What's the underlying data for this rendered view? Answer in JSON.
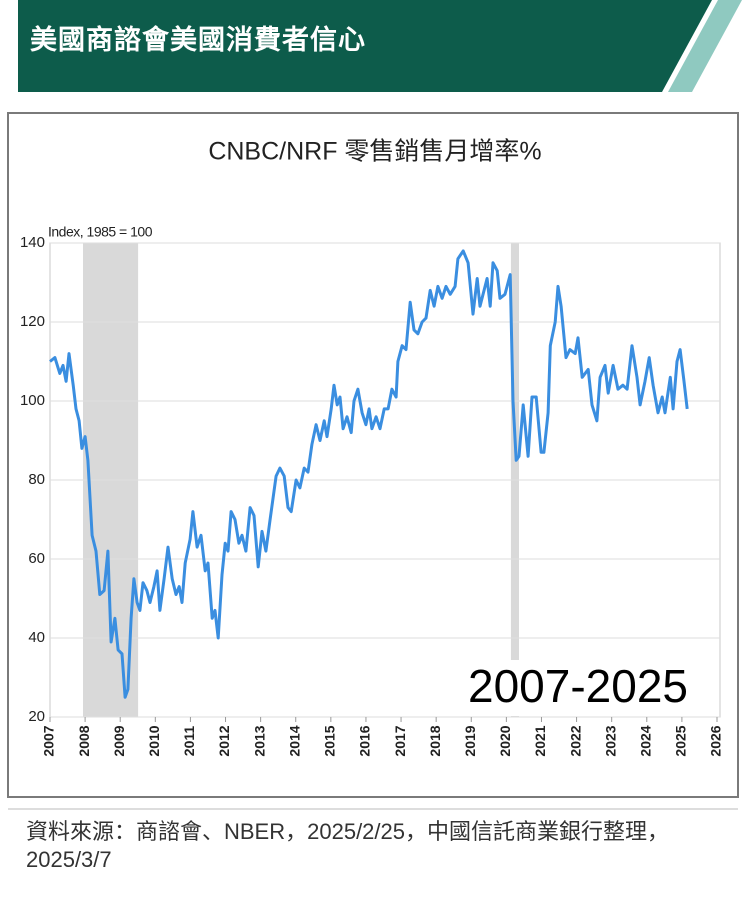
{
  "header": {
    "title": "美國商諮會美國消費者信心"
  },
  "chart_data": {
    "type": "line",
    "title": "CNBC/NRF 零售銷售月增率%",
    "y_label": "Index, 1985 = 100",
    "annotation": "2007-2025",
    "x": [
      2007.0,
      2007.14,
      2007.28,
      2007.37,
      2007.46,
      2007.54,
      2007.66,
      2007.74,
      2007.83,
      2007.91,
      2008.0,
      2008.08,
      2008.2,
      2008.31,
      2008.42,
      2008.54,
      2008.65,
      2008.74,
      2008.85,
      2008.94,
      2009.05,
      2009.14,
      2009.22,
      2009.31,
      2009.39,
      2009.48,
      2009.56,
      2009.65,
      2009.76,
      2009.85,
      2009.96,
      2010.05,
      2010.13,
      2010.25,
      2010.36,
      2010.48,
      2010.59,
      2010.68,
      2010.76,
      2010.85,
      2010.99,
      2011.07,
      2011.19,
      2011.3,
      2011.42,
      2011.5,
      2011.62,
      2011.7,
      2011.79,
      2011.9,
      2011.99,
      2012.07,
      2012.16,
      2012.27,
      2012.38,
      2012.47,
      2012.58,
      2012.7,
      2012.81,
      2012.93,
      2013.04,
      2013.15,
      2013.27,
      2013.44,
      2013.55,
      2013.67,
      2013.78,
      2013.87,
      2014.01,
      2014.12,
      2014.24,
      2014.35,
      2014.46,
      2014.58,
      2014.69,
      2014.81,
      2014.89,
      2015.01,
      2015.09,
      2015.18,
      2015.26,
      2015.35,
      2015.46,
      2015.58,
      2015.66,
      2015.77,
      2015.89,
      2016.0,
      2016.09,
      2016.17,
      2016.29,
      2016.4,
      2016.52,
      2016.63,
      2016.74,
      2016.86,
      2016.91,
      2017.03,
      2017.14,
      2017.26,
      2017.37,
      2017.48,
      2017.6,
      2017.71,
      2017.83,
      2017.94,
      2018.05,
      2018.17,
      2018.28,
      2018.4,
      2018.54,
      2018.62,
      2018.77,
      2018.91,
      2019.05,
      2019.17,
      2019.25,
      2019.45,
      2019.54,
      2019.62,
      2019.74,
      2019.82,
      2019.96,
      2020.11,
      2020.19,
      2020.28,
      2020.36,
      2020.48,
      2020.62,
      2020.73,
      2020.85,
      2020.99,
      2021.07,
      2021.19,
      2021.25,
      2021.39,
      2021.47,
      2021.56,
      2021.7,
      2021.81,
      2021.96,
      2022.04,
      2022.16,
      2022.33,
      2022.44,
      2022.58,
      2022.67,
      2022.81,
      2022.9,
      2023.04,
      2023.18,
      2023.32,
      2023.44,
      2023.58,
      2023.72,
      2023.81,
      2023.95,
      2024.07,
      2024.18,
      2024.32,
      2024.44,
      2024.52,
      2024.67,
      2024.75,
      2024.86,
      2024.95,
      2025.06,
      2025.15
    ],
    "series": [
      {
        "name": "Index",
        "color": "#3a8ee0",
        "values": [
          110,
          111,
          107,
          109,
          105,
          112,
          104,
          98,
          95,
          88,
          91,
          85,
          66,
          62,
          51,
          52,
          62,
          39,
          45,
          37,
          36,
          25,
          27,
          45,
          55,
          49,
          47,
          54,
          52,
          49,
          53,
          57,
          47,
          55,
          63,
          55,
          51,
          53,
          49,
          59,
          65,
          72,
          63,
          66,
          57,
          59,
          45,
          47,
          40,
          56,
          64,
          62,
          72,
          70,
          64,
          66,
          62,
          73,
          71,
          58,
          67,
          62,
          70,
          81,
          83,
          81,
          73,
          72,
          80,
          78,
          83,
          82,
          89,
          94,
          90,
          95,
          91,
          98,
          104,
          99,
          101,
          93,
          96,
          92,
          100,
          103,
          97,
          94,
          98,
          93,
          96,
          93,
          98,
          98,
          103,
          101,
          110,
          114,
          113,
          125,
          118,
          117,
          120,
          121,
          128,
          124,
          129,
          126,
          129,
          127,
          129,
          136,
          138,
          135,
          122,
          131,
          124,
          131,
          124,
          135,
          133,
          126,
          127,
          132,
          100,
          85,
          86,
          99,
          86,
          101,
          101,
          87,
          87,
          97,
          114,
          120,
          129,
          124,
          111,
          113,
          112,
          116,
          106,
          108,
          99,
          95,
          106,
          109,
          102,
          109,
          103,
          104,
          103,
          114,
          106,
          99,
          105,
          111,
          104,
          97,
          101,
          97,
          106,
          98,
          110,
          113,
          105,
          98
        ]
      }
    ],
    "recessions": [
      [
        2007.94,
        2009.51
      ],
      [
        2020.13,
        2020.36
      ]
    ],
    "xlim": [
      2007,
      2026
    ],
    "xticks": [
      2007,
      2008,
      2009,
      2010,
      2011,
      2012,
      2013,
      2014,
      2015,
      2016,
      2017,
      2018,
      2019,
      2020,
      2021,
      2022,
      2023,
      2024,
      2025,
      2026
    ],
    "ylim": [
      20,
      140
    ],
    "yticks": [
      20,
      40,
      60,
      80,
      100,
      120,
      140
    ],
    "grid": true
  },
  "footer": {
    "source": "資料來源：商諮會、NBER，2025/2/25，中國信託商業銀行整理，2025/3/7"
  }
}
